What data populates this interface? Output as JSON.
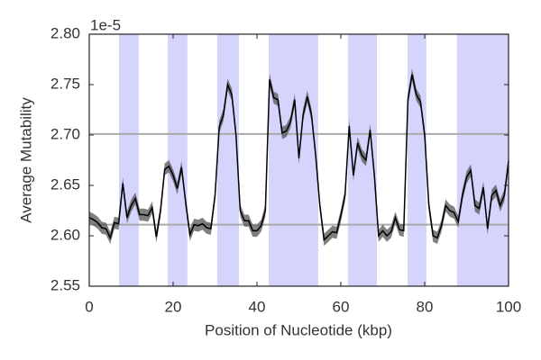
{
  "chart_data": {
    "type": "line",
    "offset_text": "1e-5",
    "xlabel": "Position of Nucleotide (kbp)",
    "ylabel": "Average Mutability",
    "x": [
      0,
      1,
      2,
      3,
      4,
      5,
      6,
      7,
      8,
      9,
      10,
      11,
      12,
      13,
      14,
      15,
      16,
      17,
      18,
      19,
      20,
      21,
      22,
      23,
      24,
      25,
      26,
      27,
      28,
      29,
      30,
      31,
      32,
      33,
      34,
      35,
      36,
      37,
      38,
      39,
      40,
      41,
      42,
      43,
      44,
      45,
      46,
      47,
      48,
      49,
      50,
      51,
      52,
      53,
      54,
      55,
      56,
      57,
      58,
      59,
      60,
      61,
      62,
      63,
      64,
      65,
      66,
      67,
      68,
      69,
      70,
      71,
      72,
      73,
      74,
      75,
      76,
      77,
      78,
      79,
      80,
      81,
      82,
      83,
      84,
      85,
      86,
      87,
      88,
      89,
      90,
      91,
      92,
      93,
      94,
      95,
      96,
      97,
      98,
      99,
      100
    ],
    "series": [
      {
        "color": "#000000",
        "band_color": "#555555",
        "values": [
          2.618,
          2.616,
          2.613,
          2.608,
          2.607,
          2.598,
          2.613,
          2.612,
          2.652,
          2.618,
          2.63,
          2.637,
          2.621,
          2.621,
          2.62,
          2.628,
          2.599,
          2.625,
          2.666,
          2.669,
          2.66,
          2.647,
          2.668,
          2.633,
          2.601,
          2.611,
          2.61,
          2.612,
          2.608,
          2.607,
          2.64,
          2.708,
          2.72,
          2.75,
          2.74,
          2.7,
          2.625,
          2.615,
          2.615,
          2.605,
          2.605,
          2.61,
          2.625,
          2.755,
          2.737,
          2.735,
          2.702,
          2.704,
          2.713,
          2.735,
          2.677,
          2.72,
          2.738,
          2.72,
          2.68,
          2.63,
          2.596,
          2.6,
          2.604,
          2.603,
          2.62,
          2.64,
          2.709,
          2.66,
          2.692,
          2.68,
          2.675,
          2.705,
          2.66,
          2.6,
          2.605,
          2.6,
          2.604,
          2.618,
          2.606,
          2.605,
          2.735,
          2.76,
          2.74,
          2.733,
          2.7,
          2.63,
          2.6,
          2.598,
          2.61,
          2.63,
          2.625,
          2.623,
          2.614,
          2.64,
          2.658,
          2.665,
          2.63,
          2.627,
          2.648,
          2.607,
          2.64,
          2.645,
          2.63,
          2.64,
          2.674
        ],
        "errors": [
          0.006,
          0.006,
          0.006,
          0.006,
          0.006,
          0.006,
          0.006,
          0.006,
          0.006,
          0.006,
          0.006,
          0.006,
          0.006,
          0.006,
          0.006,
          0.006,
          0.006,
          0.006,
          0.006,
          0.006,
          0.006,
          0.006,
          0.006,
          0.006,
          0.006,
          0.006,
          0.006,
          0.006,
          0.006,
          0.006,
          0.006,
          0.006,
          0.006,
          0.006,
          0.006,
          0.006,
          0.006,
          0.006,
          0.006,
          0.006,
          0.006,
          0.006,
          0.006,
          0.006,
          0.006,
          0.006,
          0.006,
          0.006,
          0.006,
          0.006,
          0.006,
          0.006,
          0.006,
          0.006,
          0.006,
          0.006,
          0.006,
          0.006,
          0.006,
          0.006,
          0.006,
          0.006,
          0.006,
          0.006,
          0.006,
          0.006,
          0.006,
          0.006,
          0.006,
          0.006,
          0.006,
          0.006,
          0.006,
          0.006,
          0.006,
          0.006,
          0.006,
          0.006,
          0.006,
          0.006,
          0.006,
          0.006,
          0.006,
          0.006,
          0.006,
          0.006,
          0.006,
          0.006,
          0.006,
          0.006,
          0.006,
          0.006,
          0.006,
          0.006,
          0.006,
          0.006,
          0.006,
          0.006,
          0.006,
          0.006,
          0.006
        ]
      }
    ],
    "shaded_regions": [
      [
        7.1,
        11.8
      ],
      [
        18.7,
        23.4
      ],
      [
        30.5,
        35.7
      ],
      [
        42.8,
        54.6
      ],
      [
        61.7,
        68.6
      ],
      [
        75.9,
        80.4
      ],
      [
        87.7,
        100
      ]
    ],
    "shade_color": "#d4d4fc",
    "hlines": [
      2.701,
      2.611
    ],
    "hline_color": "#aaaaaa",
    "xlim": [
      0,
      100
    ],
    "xticks": [
      0,
      20,
      40,
      60,
      80,
      100
    ],
    "ylim": [
      2.55,
      2.8
    ],
    "yticks": [
      {
        "value": 2.55,
        "label": "2.55"
      },
      {
        "value": 2.6,
        "label": "2.60"
      },
      {
        "value": 2.65,
        "label": "2.65"
      },
      {
        "value": 2.7,
        "label": "2.70"
      },
      {
        "value": 2.75,
        "label": "2.75"
      },
      {
        "value": 2.8,
        "label": "2.80"
      }
    ]
  }
}
